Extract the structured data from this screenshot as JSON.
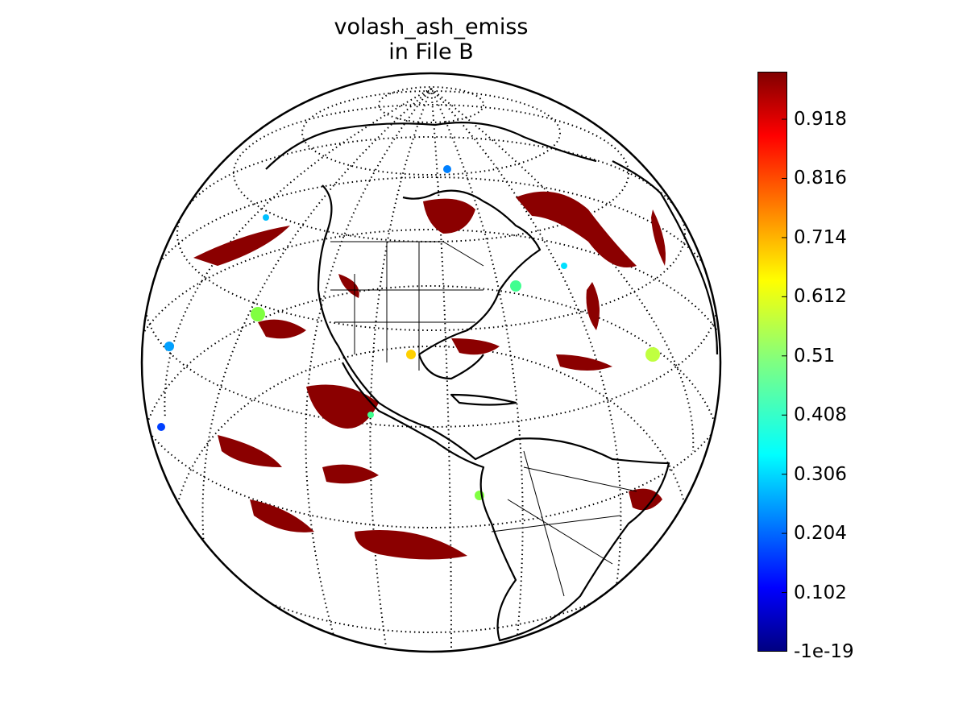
{
  "title_line1": "volash_ash_emiss",
  "title_line2": "in File B",
  "map": {
    "projection": "orthographic",
    "graticule": "dotted",
    "coastlines": true,
    "country_and_state_borders": true,
    "background_color": "#ffffff"
  },
  "colorbar": {
    "colormap": "jet",
    "min": -1e-19,
    "max": 1.0,
    "ticks": [
      {
        "value": 0.918,
        "label": "0.918"
      },
      {
        "value": 0.816,
        "label": "0.816"
      },
      {
        "value": 0.714,
        "label": "0.714"
      },
      {
        "value": 0.612,
        "label": "0.612"
      },
      {
        "value": 0.51,
        "label": "0.51"
      },
      {
        "value": 0.408,
        "label": "0.408"
      },
      {
        "value": 0.306,
        "label": "0.306"
      },
      {
        "value": 0.204,
        "label": "0.204"
      },
      {
        "value": 0.102,
        "label": "0.102"
      },
      {
        "value": 0.0,
        "label": "-1e-19"
      }
    ]
  },
  "colors": {
    "high": "#800000",
    "orange": "#ff8000",
    "yellow": "#ffff00",
    "green": "#80ff80",
    "cyan": "#00ffff",
    "blue": "#0000ff",
    "low": "#000080"
  }
}
